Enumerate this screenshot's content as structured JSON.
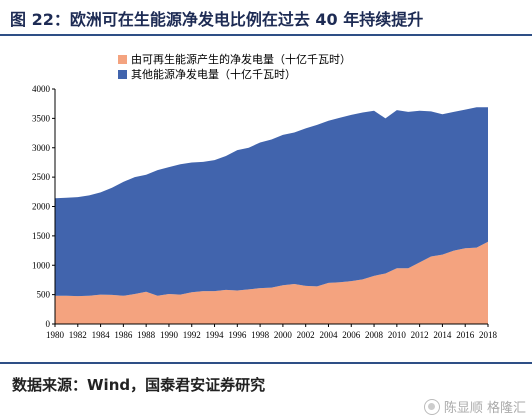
{
  "header": {
    "title": "图 22：欧洲可在生能源净发电比例在过去 40 年持续提升"
  },
  "footer": {
    "source": "数据来源：Wind，国泰君安证券研究",
    "watermark": "陈显顺 格隆汇"
  },
  "colors": {
    "renewable": "#f4a37f",
    "other": "#4164ad",
    "rule": "#2e4f86"
  },
  "chart_data": {
    "type": "area",
    "stacked": true,
    "title": "",
    "xlabel": "",
    "ylabel": "",
    "ylim": [
      0,
      4000
    ],
    "yticks": [
      0,
      500,
      1000,
      1500,
      2000,
      2500,
      3000,
      3500,
      4000
    ],
    "xlim": [
      1980,
      2018
    ],
    "xticks": [
      1980,
      1982,
      1984,
      1986,
      1988,
      1990,
      1992,
      1994,
      1996,
      1998,
      2000,
      2002,
      2004,
      2006,
      2008,
      2010,
      2012,
      2014,
      2016,
      2018
    ],
    "legend_position": "top",
    "grid": false,
    "x": [
      1980,
      1981,
      1982,
      1983,
      1984,
      1985,
      1986,
      1987,
      1988,
      1989,
      1990,
      1991,
      1992,
      1993,
      1994,
      1995,
      1996,
      1997,
      1998,
      1999,
      2000,
      2001,
      2002,
      2003,
      2004,
      2005,
      2006,
      2007,
      2008,
      2009,
      2010,
      2011,
      2012,
      2013,
      2014,
      2015,
      2016,
      2017,
      2018
    ],
    "series": [
      {
        "name": "由可再生能源产生的净发电量（十亿千瓦时）",
        "color": "#f4a37f",
        "values": [
          480,
          480,
          475,
          480,
          500,
          495,
          480,
          510,
          550,
          480,
          510,
          500,
          540,
          560,
          560,
          580,
          570,
          590,
          610,
          620,
          660,
          680,
          650,
          640,
          700,
          710,
          730,
          760,
          820,
          860,
          950,
          950,
          1050,
          1150,
          1180,
          1250,
          1290,
          1300,
          1400
        ]
      },
      {
        "name": "其他能源净发电量（十亿千瓦时）",
        "color": "#4164ad",
        "values": [
          1660,
          1670,
          1685,
          1710,
          1740,
          1825,
          1940,
          1990,
          1990,
          2140,
          2160,
          2220,
          2210,
          2200,
          2230,
          2280,
          2390,
          2410,
          2480,
          2520,
          2560,
          2580,
          2680,
          2750,
          2760,
          2800,
          2830,
          2840,
          2810,
          2640,
          2690,
          2660,
          2580,
          2470,
          2390,
          2360,
          2360,
          2390,
          2290
        ]
      }
    ]
  }
}
